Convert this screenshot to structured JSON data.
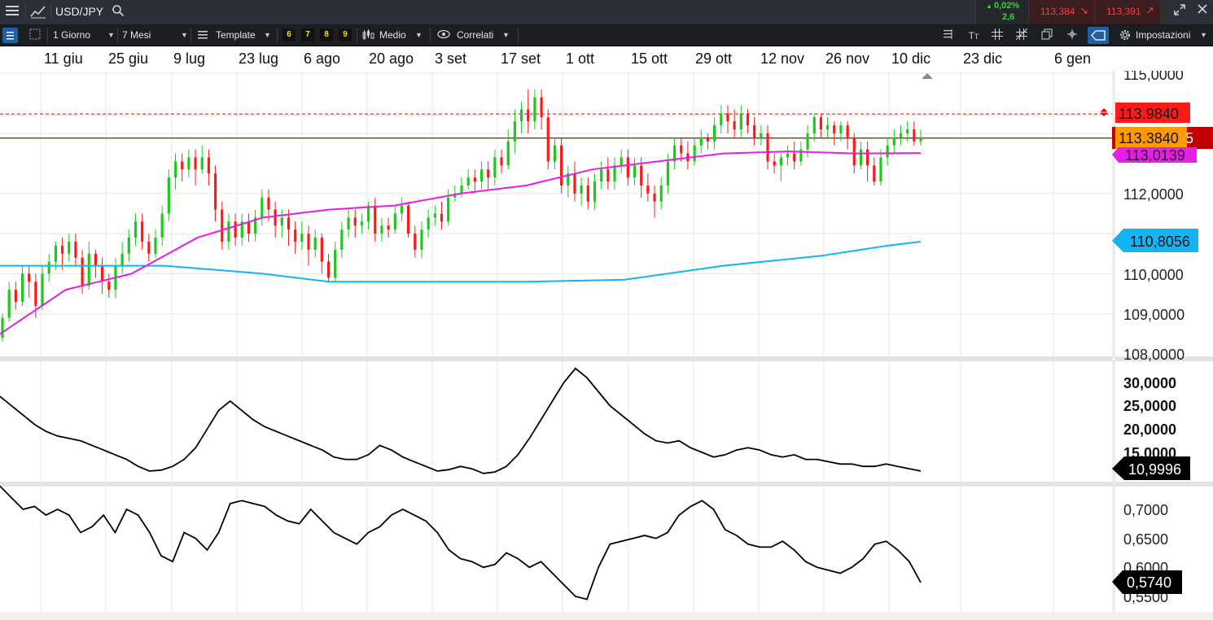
{
  "header": {
    "symbol": "USD/JPY",
    "change_pct": "0,02%",
    "change_abs": "2,6",
    "bid": "113,384",
    "ask": "113,391"
  },
  "toolbar": {
    "interval": "1 Giorno",
    "range": "7 Mesi",
    "template": "Template",
    "quick1": "6",
    "quick2": "7",
    "quick3": "8",
    "quick4": "9",
    "chart_type": "Medio",
    "correlati": "Correlati",
    "settings": "Impostazioni"
  },
  "dates": [
    "11 giu",
    "25 giu",
    "9 lug",
    "23 lug",
    "6 ago",
    "20 ago",
    "3 set",
    "17 set",
    "1 ott",
    "15 ott",
    "29 ott",
    "12 nov",
    "26 nov",
    "10 dic",
    "23 dic",
    "6 gen"
  ],
  "price_axis": [
    "115,0000",
    "112,0000",
    "110,0000",
    "109,0000",
    "108,0000"
  ],
  "price_labels": {
    "red_line": "113.9840",
    "orange_line": "113.3840",
    "magenta": "113,0139",
    "cyan": "110,8056",
    "partial_digit": "5"
  },
  "panel2_axis": [
    "30,0000",
    "25,0000",
    "20,0000",
    "15,0000"
  ],
  "panel2_current": "10,9996",
  "panel3_axis": [
    "0,7000",
    "0,6500",
    "0,6000",
    "0,5500"
  ],
  "panel3_current": "0,5740",
  "colors": {
    "up": "#1ec81e",
    "down": "#ff1a1a",
    "ma_fast": "#e61ee6",
    "ma_slow": "#14b4f0",
    "red_line": "#d40000",
    "orange_line": "#ff9900"
  },
  "icons": {
    "menu": "menu-icon",
    "chart": "chart-line-icon",
    "search": "search-icon",
    "fullscreen": "expand-icon",
    "close": "close-icon"
  },
  "chart_data": [
    {
      "type": "candlestick",
      "title": "USD/JPY",
      "x_range": [
        "2018-06-04",
        "2019-01-06"
      ],
      "ylim": [
        108,
        115.3
      ],
      "grid": true,
      "candles": [
        [
          108.4,
          108.9,
          108.3,
          109.0
        ],
        [
          108.9,
          109.6,
          108.8,
          109.8
        ],
        [
          109.6,
          109.3,
          109.1,
          109.8
        ],
        [
          109.3,
          110.0,
          109.2,
          110.2
        ],
        [
          110.0,
          109.8,
          109.4,
          110.2
        ],
        [
          109.8,
          109.2,
          108.9,
          110.0
        ],
        [
          109.2,
          110.0,
          109.1,
          110.2
        ],
        [
          110.0,
          110.3,
          109.8,
          110.5
        ],
        [
          110.3,
          110.7,
          110.1,
          110.8
        ],
        [
          110.7,
          110.5,
          110.1,
          110.9
        ],
        [
          110.5,
          110.8,
          110.3,
          111.0
        ],
        [
          110.8,
          110.4,
          110.2,
          111.0
        ],
        [
          110.4,
          109.7,
          109.5,
          110.6
        ],
        [
          109.7,
          110.5,
          109.6,
          110.8
        ],
        [
          110.5,
          110.2,
          109.9,
          110.6
        ],
        [
          110.2,
          109.8,
          109.5,
          110.4
        ],
        [
          109.8,
          109.6,
          109.4,
          110.0
        ],
        [
          109.6,
          110.2,
          109.4,
          110.4
        ],
        [
          110.2,
          110.5,
          110.0,
          110.8
        ],
        [
          110.5,
          110.9,
          110.3,
          111.1
        ],
        [
          110.9,
          111.3,
          110.7,
          111.5
        ],
        [
          111.3,
          110.8,
          110.6,
          111.5
        ],
        [
          110.8,
          110.5,
          110.3,
          111.0
        ],
        [
          110.5,
          110.9,
          110.4,
          111.1
        ],
        [
          110.9,
          111.5,
          110.7,
          111.7
        ],
        [
          111.5,
          112.4,
          111.3,
          112.6
        ],
        [
          112.4,
          112.8,
          112.1,
          113.0
        ],
        [
          112.8,
          112.6,
          112.3,
          113.0
        ],
        [
          112.6,
          112.9,
          112.4,
          113.1
        ],
        [
          112.9,
          112.6,
          112.2,
          113.1
        ],
        [
          112.6,
          112.9,
          112.5,
          113.2
        ],
        [
          112.9,
          112.5,
          112.2,
          113.1
        ],
        [
          112.5,
          111.6,
          111.3,
          112.7
        ],
        [
          111.6,
          110.8,
          110.6,
          111.8
        ],
        [
          110.8,
          111.3,
          110.6,
          111.5
        ],
        [
          111.3,
          110.9,
          110.7,
          111.5
        ],
        [
          110.9,
          111.3,
          110.7,
          111.5
        ],
        [
          111.3,
          111.0,
          110.8,
          111.5
        ],
        [
          111.0,
          111.4,
          110.8,
          111.6
        ],
        [
          111.4,
          111.9,
          111.2,
          112.1
        ],
        [
          111.9,
          111.6,
          111.3,
          112.1
        ],
        [
          111.6,
          111.2,
          110.9,
          111.8
        ],
        [
          111.2,
          111.4,
          110.9,
          111.6
        ],
        [
          111.4,
          111.1,
          110.7,
          111.6
        ],
        [
          111.1,
          110.8,
          110.5,
          111.3
        ],
        [
          110.8,
          111.0,
          110.6,
          111.3
        ],
        [
          111.0,
          110.6,
          110.2,
          111.2
        ],
        [
          110.6,
          110.9,
          110.4,
          111.1
        ],
        [
          110.9,
          110.3,
          110.0,
          111.0
        ],
        [
          110.3,
          109.9,
          109.8,
          110.5
        ],
        [
          109.9,
          110.6,
          109.8,
          110.8
        ],
        [
          110.6,
          111.1,
          110.4,
          111.3
        ],
        [
          111.1,
          111.4,
          110.9,
          111.6
        ],
        [
          111.4,
          111.2,
          110.9,
          111.6
        ],
        [
          111.2,
          111.3,
          111.0,
          111.5
        ],
        [
          111.3,
          111.7,
          111.1,
          111.8
        ],
        [
          111.7,
          111.0,
          110.8,
          111.9
        ],
        [
          111.0,
          111.2,
          110.8,
          111.4
        ],
        [
          111.2,
          111.1,
          110.9,
          111.4
        ],
        [
          111.1,
          111.5,
          111.0,
          111.7
        ],
        [
          111.5,
          111.7,
          111.3,
          111.9
        ],
        [
          111.7,
          111.0,
          110.9,
          111.8
        ],
        [
          111.0,
          110.6,
          110.4,
          111.2
        ],
        [
          110.6,
          111.1,
          110.4,
          111.3
        ],
        [
          111.1,
          111.4,
          110.9,
          111.6
        ],
        [
          111.4,
          111.5,
          111.2,
          111.7
        ],
        [
          111.5,
          111.3,
          111.1,
          111.8
        ],
        [
          111.3,
          111.9,
          111.2,
          112.1
        ],
        [
          111.9,
          112.0,
          111.8,
          112.2
        ],
        [
          112.0,
          112.2,
          111.9,
          112.4
        ],
        [
          112.2,
          112.4,
          112.1,
          112.6
        ],
        [
          112.4,
          112.3,
          112.0,
          112.6
        ],
        [
          112.3,
          112.6,
          112.1,
          112.8
        ],
        [
          112.6,
          112.4,
          112.1,
          112.8
        ],
        [
          112.4,
          112.9,
          112.2,
          113.1
        ],
        [
          112.9,
          112.7,
          112.5,
          113.1
        ],
        [
          112.7,
          113.3,
          112.6,
          113.6
        ],
        [
          113.3,
          113.8,
          113.0,
          114.1
        ],
        [
          113.8,
          114.1,
          113.5,
          114.3
        ],
        [
          114.1,
          113.8,
          113.5,
          114.6
        ],
        [
          113.8,
          114.4,
          113.6,
          114.6
        ],
        [
          114.4,
          113.9,
          113.6,
          114.6
        ],
        [
          113.9,
          112.8,
          112.6,
          114.1
        ],
        [
          112.8,
          113.2,
          112.6,
          113.4
        ],
        [
          113.2,
          112.2,
          112.0,
          113.4
        ],
        [
          112.2,
          112.5,
          111.9,
          112.7
        ],
        [
          112.5,
          112.0,
          111.8,
          112.8
        ],
        [
          112.0,
          112.2,
          111.7,
          112.4
        ],
        [
          112.2,
          111.8,
          111.6,
          112.4
        ],
        [
          111.8,
          112.3,
          111.6,
          112.5
        ],
        [
          112.3,
          112.6,
          112.1,
          112.8
        ],
        [
          112.6,
          112.3,
          112.1,
          112.9
        ],
        [
          112.3,
          112.7,
          112.1,
          112.9
        ],
        [
          112.7,
          112.9,
          112.5,
          113.1
        ],
        [
          112.9,
          112.4,
          112.2,
          113.1
        ],
        [
          112.4,
          112.7,
          112.2,
          112.9
        ],
        [
          112.7,
          112.2,
          111.9,
          112.9
        ],
        [
          112.2,
          112.0,
          111.8,
          112.5
        ],
        [
          112.0,
          111.8,
          111.4,
          112.2
        ],
        [
          111.8,
          112.2,
          111.6,
          112.4
        ],
        [
          112.2,
          112.8,
          112.0,
          113.0
        ],
        [
          112.8,
          113.2,
          112.6,
          113.4
        ],
        [
          113.2,
          113.0,
          112.8,
          113.4
        ],
        [
          113.0,
          112.8,
          112.6,
          113.3
        ],
        [
          112.8,
          113.2,
          112.7,
          113.4
        ],
        [
          113.2,
          113.4,
          113.0,
          113.6
        ],
        [
          113.4,
          113.3,
          113.1,
          113.5
        ],
        [
          113.3,
          113.7,
          113.1,
          113.9
        ],
        [
          113.7,
          114.0,
          113.5,
          114.2
        ],
        [
          114.0,
          113.8,
          113.5,
          114.2
        ],
        [
          113.8,
          113.6,
          113.4,
          114.1
        ],
        [
          113.6,
          114.0,
          113.4,
          114.2
        ],
        [
          114.0,
          113.7,
          113.5,
          114.1
        ],
        [
          113.7,
          113.4,
          113.2,
          113.9
        ],
        [
          113.4,
          113.5,
          113.2,
          113.7
        ],
        [
          113.5,
          112.8,
          112.6,
          113.7
        ],
        [
          112.8,
          112.7,
          112.5,
          113.0
        ],
        [
          112.7,
          112.9,
          112.3,
          113.0
        ],
        [
          112.9,
          113.0,
          112.7,
          113.2
        ],
        [
          113.0,
          112.8,
          112.6,
          113.3
        ],
        [
          112.8,
          113.1,
          112.7,
          113.3
        ],
        [
          113.1,
          113.5,
          112.9,
          113.7
        ],
        [
          113.5,
          113.9,
          113.3,
          114.0
        ],
        [
          113.9,
          113.6,
          113.4,
          114.0
        ],
        [
          113.6,
          113.7,
          113.4,
          113.9
        ],
        [
          113.7,
          113.5,
          113.2,
          113.8
        ],
        [
          113.5,
          113.7,
          113.3,
          113.8
        ],
        [
          113.7,
          113.4,
          113.1,
          113.8
        ],
        [
          113.4,
          112.7,
          112.5,
          113.5
        ],
        [
          112.7,
          113.1,
          112.6,
          113.3
        ],
        [
          113.1,
          112.7,
          112.3,
          113.3
        ],
        [
          112.7,
          112.3,
          112.2,
          112.9
        ],
        [
          112.3,
          112.9,
          112.2,
          113.1
        ],
        [
          112.9,
          113.2,
          112.7,
          113.4
        ],
        [
          113.2,
          113.4,
          113.0,
          113.6
        ],
        [
          113.4,
          113.5,
          113.2,
          113.7
        ],
        [
          113.5,
          113.6,
          113.3,
          113.8
        ],
        [
          113.6,
          113.3,
          113.2,
          113.8
        ],
        [
          113.3,
          113.4,
          113.2,
          113.6
        ]
      ],
      "ma_fast": [
        [
          0,
          108.5
        ],
        [
          20,
          109.6
        ],
        [
          40,
          110.0
        ],
        [
          60,
          110.9
        ],
        [
          80,
          111.4
        ],
        [
          100,
          111.6
        ],
        [
          120,
          111.7
        ],
        [
          140,
          112.0
        ],
        [
          160,
          112.2
        ],
        [
          180,
          112.6
        ],
        [
          200,
          112.8
        ],
        [
          220,
          113.0
        ],
        [
          240,
          113.05
        ],
        [
          260,
          113.0
        ],
        [
          280,
          113.01
        ]
      ],
      "ma_slow": [
        [
          0,
          110.2
        ],
        [
          25,
          110.2
        ],
        [
          50,
          110.2
        ],
        [
          80,
          110.0
        ],
        [
          100,
          109.8
        ],
        [
          130,
          109.8
        ],
        [
          160,
          109.8
        ],
        [
          190,
          109.85
        ],
        [
          220,
          110.2
        ],
        [
          250,
          110.45
        ],
        [
          270,
          110.7
        ],
        [
          280,
          110.8
        ]
      ],
      "hlines": [
        113.984,
        113.384
      ]
    },
    {
      "type": "line",
      "ylim": [
        9,
        33
      ],
      "values": [
        27,
        25,
        23,
        21,
        19.5,
        18.5,
        18,
        17.5,
        16.5,
        15.5,
        14.5,
        13.5,
        12,
        11,
        11.2,
        12,
        13.5,
        16,
        20,
        24,
        26,
        24,
        22,
        20.5,
        19.5,
        18.5,
        17.5,
        16.5,
        15.5,
        14,
        13.5,
        13.5,
        14.5,
        16.5,
        15.5,
        14,
        13,
        12,
        11,
        11.3,
        12,
        11.5,
        10.5,
        10.8,
        12,
        14.5,
        18,
        22,
        26,
        30,
        33,
        31,
        28,
        25,
        23,
        21,
        19,
        17.5,
        17,
        17.5,
        16,
        15,
        14,
        14.5,
        15.5,
        16,
        15.5,
        14.5,
        14,
        14.5,
        13.5,
        13.5,
        13,
        12.5,
        12.5,
        12,
        12,
        12.5,
        12,
        11.5,
        11
      ]
    },
    {
      "type": "line",
      "ylim": [
        0.54,
        0.74
      ],
      "values": [
        0.74,
        0.72,
        0.7,
        0.705,
        0.69,
        0.7,
        0.69,
        0.66,
        0.67,
        0.69,
        0.66,
        0.7,
        0.69,
        0.66,
        0.62,
        0.61,
        0.66,
        0.65,
        0.63,
        0.66,
        0.71,
        0.715,
        0.71,
        0.705,
        0.69,
        0.68,
        0.675,
        0.7,
        0.68,
        0.66,
        0.65,
        0.64,
        0.66,
        0.67,
        0.69,
        0.7,
        0.69,
        0.68,
        0.66,
        0.63,
        0.615,
        0.61,
        0.6,
        0.605,
        0.625,
        0.615,
        0.6,
        0.61,
        0.59,
        0.57,
        0.55,
        0.545,
        0.6,
        0.64,
        0.645,
        0.65,
        0.655,
        0.65,
        0.66,
        0.69,
        0.705,
        0.715,
        0.7,
        0.665,
        0.655,
        0.64,
        0.635,
        0.635,
        0.645,
        0.63,
        0.61,
        0.6,
        0.595,
        0.59,
        0.6,
        0.615,
        0.64,
        0.645,
        0.63,
        0.61,
        0.574
      ]
    }
  ]
}
